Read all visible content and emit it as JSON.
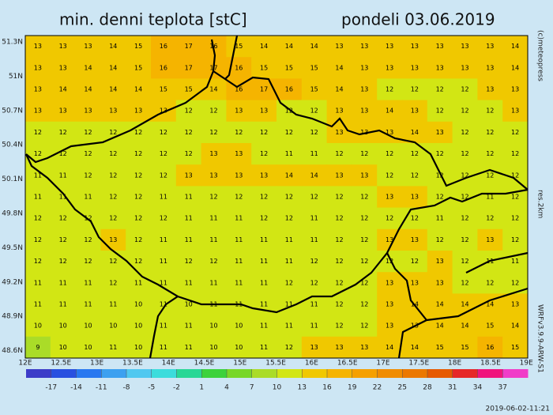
{
  "header": {
    "title": "min. denni teplota [stC]",
    "date": "pondeli 03.06.2019"
  },
  "map": {
    "lat_labels": [
      "51.3N",
      "51N",
      "50.7N",
      "50.4N",
      "50.1N",
      "49.8N",
      "49.5N",
      "49.2N",
      "48.9N",
      "48.6N"
    ],
    "lon_labels": [
      "12E",
      "12.5E",
      "13E",
      "13.5E",
      "14E",
      "14.5E",
      "15E",
      "15.5E",
      "16E",
      "16.5E",
      "17E",
      "17.5E",
      "18E",
      "18.5E",
      "19E"
    ],
    "grid": [
      [
        13,
        13,
        13,
        14,
        15,
        16,
        17,
        16,
        15,
        14,
        14,
        14,
        13,
        13,
        13,
        13,
        13,
        13,
        13,
        14
      ],
      [
        13,
        13,
        14,
        14,
        15,
        16,
        17,
        17,
        16,
        15,
        15,
        15,
        14,
        13,
        13,
        13,
        13,
        13,
        13,
        14
      ],
      [
        13,
        14,
        14,
        14,
        14,
        15,
        15,
        14,
        16,
        17,
        16,
        15,
        14,
        13,
        12,
        12,
        12,
        12,
        13,
        13
      ],
      [
        13,
        13,
        13,
        13,
        13,
        13,
        12,
        12,
        13,
        13,
        12,
        12,
        13,
        13,
        14,
        13,
        12,
        12,
        12,
        13
      ],
      [
        12,
        12,
        12,
        12,
        12,
        12,
        12,
        12,
        12,
        12,
        12,
        12,
        13,
        13,
        13,
        14,
        13,
        12,
        12,
        12
      ],
      [
        12,
        12,
        12,
        12,
        12,
        12,
        12,
        13,
        13,
        12,
        11,
        11,
        12,
        12,
        12,
        12,
        12,
        12,
        12,
        12
      ],
      [
        11,
        11,
        12,
        12,
        12,
        12,
        13,
        13,
        13,
        13,
        14,
        14,
        13,
        13,
        12,
        12,
        12,
        12,
        12,
        12
      ],
      [
        11,
        11,
        11,
        12,
        12,
        11,
        11,
        12,
        12,
        12,
        12,
        12,
        12,
        12,
        13,
        13,
        12,
        12,
        11,
        12
      ],
      [
        12,
        12,
        12,
        12,
        12,
        12,
        11,
        11,
        11,
        12,
        12,
        11,
        12,
        12,
        12,
        12,
        11,
        12,
        12,
        12
      ],
      [
        12,
        12,
        12,
        13,
        12,
        11,
        11,
        11,
        11,
        11,
        11,
        11,
        12,
        12,
        13,
        13,
        12,
        12,
        13,
        12
      ],
      [
        12,
        12,
        12,
        12,
        12,
        11,
        12,
        12,
        11,
        11,
        11,
        12,
        12,
        12,
        12,
        12,
        13,
        12,
        11,
        11
      ],
      [
        11,
        11,
        11,
        12,
        11,
        11,
        11,
        11,
        11,
        11,
        12,
        12,
        12,
        12,
        13,
        13,
        13,
        12,
        12,
        12
      ],
      [
        11,
        11,
        11,
        11,
        10,
        11,
        10,
        11,
        11,
        11,
        11,
        11,
        12,
        12,
        13,
        14,
        14,
        14,
        14,
        13
      ],
      [
        10,
        10,
        10,
        10,
        10,
        11,
        11,
        10,
        10,
        11,
        11,
        11,
        12,
        12,
        13,
        13,
        14,
        14,
        15,
        14
      ],
      [
        9,
        10,
        10,
        11,
        10,
        11,
        11,
        10,
        10,
        11,
        12,
        13,
        13,
        13,
        14,
        14,
        15,
        15,
        16,
        15
      ]
    ]
  },
  "colorbar": {
    "lim": [
      -20,
      40
    ],
    "ticks": [
      -17,
      -14,
      -11,
      -8,
      -5,
      -2,
      1,
      4,
      7,
      10,
      13,
      16,
      19,
      22,
      25,
      28,
      31,
      34,
      37
    ],
    "colors": [
      "#3c3cc8",
      "#2850e0",
      "#2878f0",
      "#3ca0f0",
      "#50c8f0",
      "#3cdcdc",
      "#28d796",
      "#3cd23c",
      "#78d728",
      "#aadc28",
      "#d2e614",
      "#f0c800",
      "#f5b400",
      "#f5a000",
      "#f08c00",
      "#eb7800",
      "#e65a00",
      "#e62828",
      "#f0147d",
      "#f03cc8"
    ]
  },
  "credits": {
    "copyright": "(c)meteopress",
    "resolution": "res.2km",
    "model": "WRFv3.9.9-ARW-S1",
    "timestamp": "2019-06-02-11:21"
  }
}
